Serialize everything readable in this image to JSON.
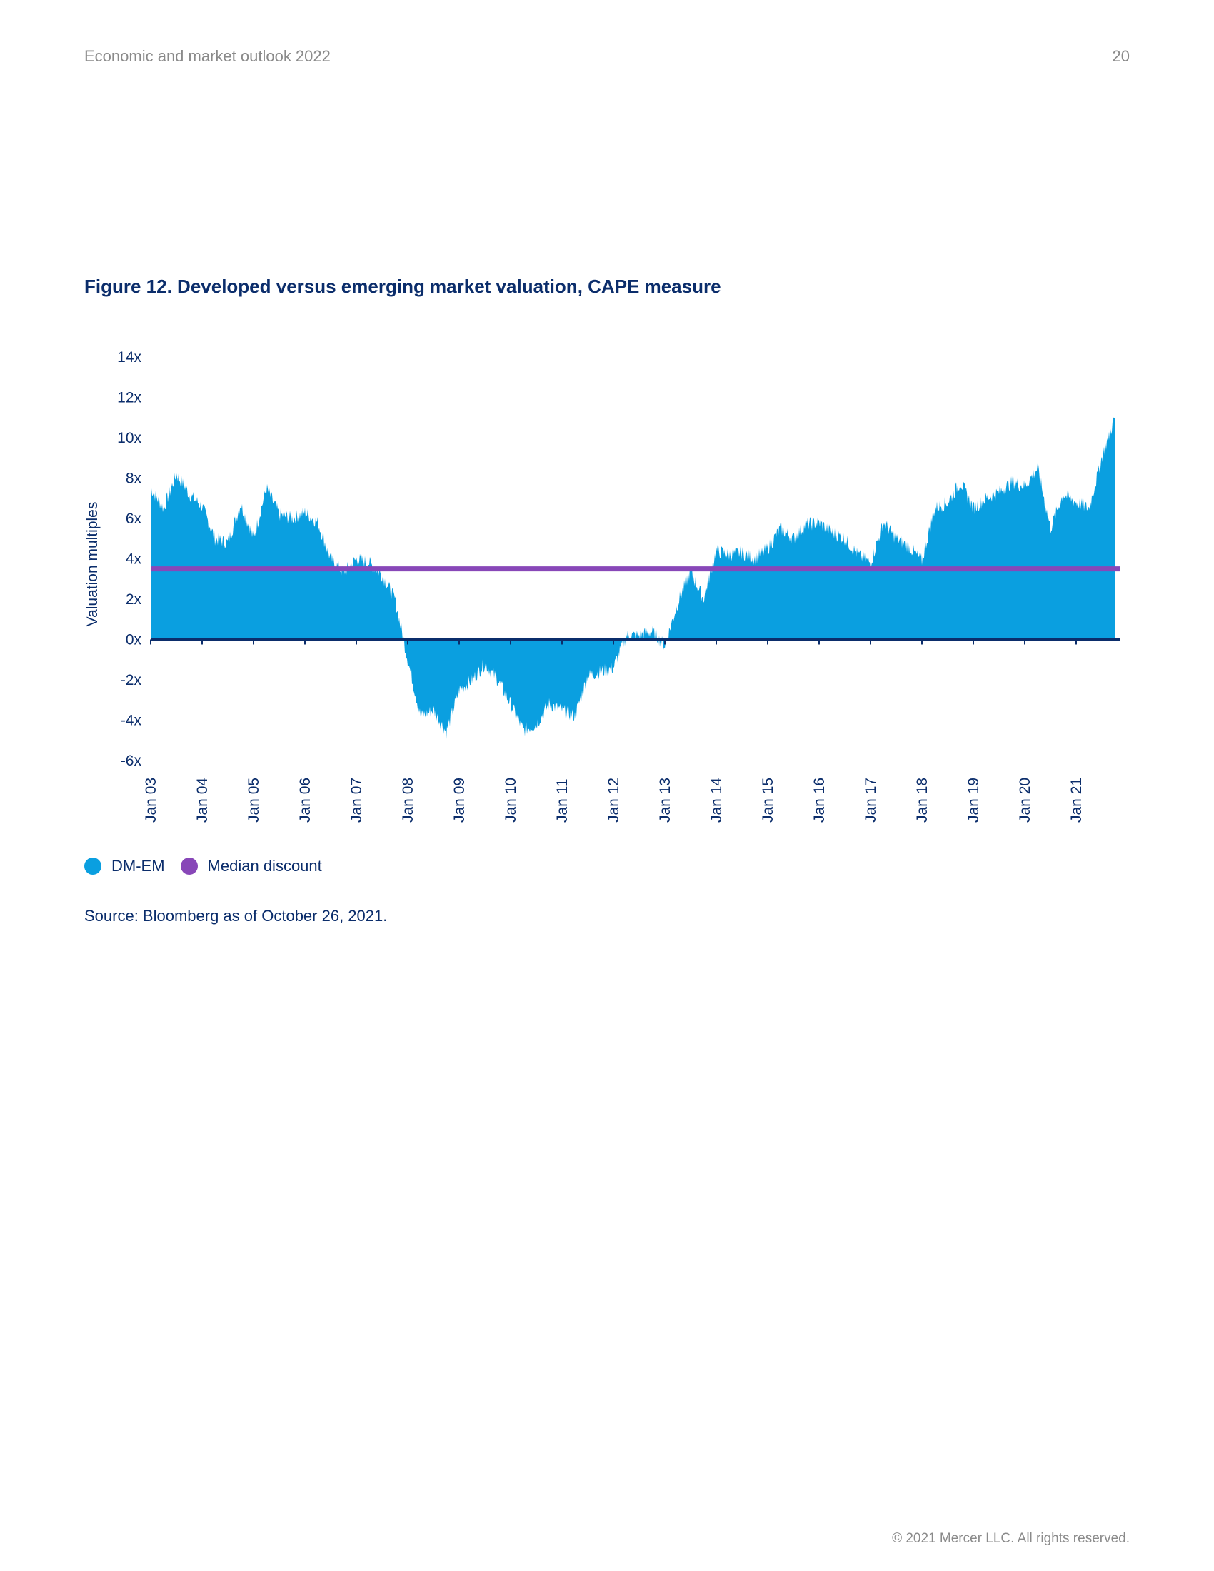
{
  "header": {
    "running_title": "Economic and market outlook 2022",
    "page_number": "20"
  },
  "figure": {
    "title": "Figure 12. Developed versus emerging market valuation, CAPE measure"
  },
  "legend": {
    "items": [
      {
        "label": "DM-EM",
        "color": "#0a9fe0"
      },
      {
        "label": "Median discount",
        "color": "#8847b8"
      }
    ]
  },
  "source": "Source: Bloomberg as of October 26, 2021.",
  "footer": "© 2021 Mercer LLC. All rights reserved.",
  "chart_data": {
    "type": "area",
    "ylabel": "Valuation multiples",
    "ylim": [
      -6,
      14
    ],
    "y_ticks": [
      14,
      12,
      10,
      8,
      6,
      4,
      2,
      0,
      -2,
      -4,
      -6
    ],
    "y_tick_labels": [
      "14x",
      "12x",
      "10x",
      "8x",
      "6x",
      "4x",
      "2x",
      "0x",
      "-2x",
      "-4x",
      "-6x"
    ],
    "x_tick_labels": [
      "Jan 03",
      "Jan 04",
      "Jan 05",
      "Jan 06",
      "Jan 07",
      "Jan 08",
      "Jan 09",
      "Jan 10",
      "Jan 11",
      "Jan 12",
      "Jan 13",
      "Jan 14",
      "Jan 15",
      "Jan 16",
      "Jan 17",
      "Jan 18",
      "Jan 19",
      "Jan 20",
      "Jan 21"
    ],
    "xlim": [
      "2003-01",
      "2021-10"
    ],
    "series": [
      {
        "name": "DM-EM",
        "color": "#0a9fe0",
        "x": [
          "2003-01",
          "2003-04",
          "2003-07",
          "2003-10",
          "2004-01",
          "2004-04",
          "2004-07",
          "2004-10",
          "2005-01",
          "2005-04",
          "2005-07",
          "2005-10",
          "2006-01",
          "2006-04",
          "2006-07",
          "2006-10",
          "2007-01",
          "2007-04",
          "2007-07",
          "2007-10",
          "2008-01",
          "2008-04",
          "2008-07",
          "2008-10",
          "2009-01",
          "2009-04",
          "2009-07",
          "2009-10",
          "2010-01",
          "2010-04",
          "2010-07",
          "2010-10",
          "2011-01",
          "2011-04",
          "2011-07",
          "2011-10",
          "2012-01",
          "2012-04",
          "2012-07",
          "2012-10",
          "2013-01",
          "2013-04",
          "2013-07",
          "2013-10",
          "2014-01",
          "2014-04",
          "2014-07",
          "2014-10",
          "2015-01",
          "2015-04",
          "2015-07",
          "2015-10",
          "2016-01",
          "2016-04",
          "2016-07",
          "2016-10",
          "2017-01",
          "2017-04",
          "2017-07",
          "2017-10",
          "2018-01",
          "2018-04",
          "2018-07",
          "2018-10",
          "2019-01",
          "2019-04",
          "2019-07",
          "2019-10",
          "2020-01",
          "2020-04",
          "2020-07",
          "2020-10",
          "2021-01",
          "2021-04",
          "2021-07",
          "2021-10"
        ],
        "values": [
          7.5,
          6.5,
          8.2,
          7.2,
          6.6,
          5.0,
          4.8,
          6.7,
          5.0,
          7.5,
          6.2,
          6.0,
          6.3,
          5.8,
          4.0,
          3.3,
          4.0,
          3.8,
          3.2,
          2.0,
          -1.0,
          -3.8,
          -3.5,
          -4.6,
          -2.5,
          -2.0,
          -1.2,
          -2.0,
          -3.2,
          -4.5,
          -4.2,
          -3.2,
          -3.5,
          -3.8,
          -1.8,
          -1.6,
          -1.4,
          0.2,
          0.2,
          0.4,
          -0.3,
          1.8,
          3.4,
          2.0,
          4.4,
          4.2,
          4.3,
          4.0,
          4.5,
          5.5,
          5.0,
          5.7,
          5.8,
          5.3,
          5.0,
          4.2,
          3.8,
          5.8,
          5.0,
          4.6,
          3.9,
          6.5,
          6.8,
          7.8,
          6.5,
          7.0,
          7.3,
          7.8,
          7.6,
          8.5,
          5.5,
          7.2,
          6.8,
          6.5,
          9.0,
          11.0
        ]
      },
      {
        "name": "Median discount",
        "color": "#8847b8",
        "constant": 3.5
      }
    ]
  }
}
